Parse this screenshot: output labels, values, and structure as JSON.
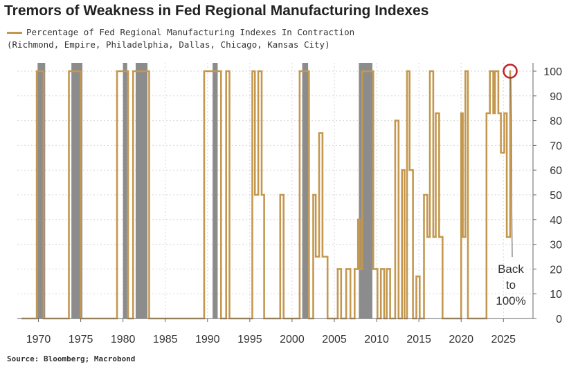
{
  "title": "Tremors of Weakness in Fed Regional Manufacturing Indexes",
  "legend": {
    "line1": "Percentage of Fed Regional Manufacturing Indexes In Contraction",
    "line2": "(Richmond, Empire, Philadelphia, Dallas, Chicago, Kansas City)"
  },
  "source": "Source: Bloomberg; Macrobond",
  "annotation": [
    "Back",
    "to",
    "100%"
  ],
  "colors": {
    "line": "#c4974f",
    "recession": "#8c8c8c",
    "grid": "#d6d6d6",
    "circle": "#c0202a"
  },
  "chart_data": {
    "type": "line",
    "xlim": [
      1967.5,
      2028.5
    ],
    "ylim": [
      0,
      100
    ],
    "x_ticks": [
      1970,
      1975,
      1980,
      1985,
      1990,
      1995,
      2000,
      2005,
      2010,
      2015,
      2020,
      2025
    ],
    "y_ticks": [
      0,
      10,
      20,
      30,
      40,
      50,
      60,
      70,
      80,
      90,
      100
    ],
    "grid": true,
    "recessions": [
      [
        1969.9,
        1970.8
      ],
      [
        1973.9,
        1975.2
      ],
      [
        1980.0,
        1980.5
      ],
      [
        1981.5,
        1982.9
      ],
      [
        1990.6,
        1991.2
      ],
      [
        2001.2,
        2001.9
      ],
      [
        2007.9,
        2009.5
      ]
    ],
    "series": [
      {
        "name": "Percentage of Fed Regional Manufacturing Indexes In Contraction",
        "step": true,
        "points": [
          [
            1968,
            0
          ],
          [
            1969.8,
            100
          ],
          [
            1970.6,
            0
          ],
          [
            1973.6,
            100
          ],
          [
            1974.9,
            100
          ],
          [
            1975.0,
            0
          ],
          [
            1979.3,
            100
          ],
          [
            1980.6,
            0
          ],
          [
            1981.2,
            100
          ],
          [
            1982.9,
            100
          ],
          [
            1983.1,
            0
          ],
          [
            1989.6,
            100
          ],
          [
            1991.6,
            0
          ],
          [
            1992.2,
            100
          ],
          [
            1992.6,
            0
          ],
          [
            1995.3,
            100
          ],
          [
            1995.6,
            50
          ],
          [
            1996.0,
            100
          ],
          [
            1996.4,
            50
          ],
          [
            1996.7,
            0
          ],
          [
            1998.6,
            50
          ],
          [
            1999.0,
            0
          ],
          [
            2000.9,
            100
          ],
          [
            2002.0,
            0
          ],
          [
            2002.5,
            50
          ],
          [
            2002.8,
            25
          ],
          [
            2003.2,
            75
          ],
          [
            2003.6,
            25
          ],
          [
            2004.2,
            0
          ],
          [
            2005.4,
            20
          ],
          [
            2005.8,
            0
          ],
          [
            2006.4,
            20
          ],
          [
            2006.9,
            0
          ],
          [
            2007.4,
            20
          ],
          [
            2007.8,
            40
          ],
          [
            2008.0,
            20
          ],
          [
            2008.3,
            100
          ],
          [
            2009.6,
            20
          ],
          [
            2010.1,
            0
          ],
          [
            2010.5,
            20
          ],
          [
            2010.9,
            0
          ],
          [
            2011.2,
            20
          ],
          [
            2011.6,
            0
          ],
          [
            2012.2,
            80
          ],
          [
            2012.6,
            0
          ],
          [
            2013.0,
            60
          ],
          [
            2013.3,
            0
          ],
          [
            2013.6,
            100
          ],
          [
            2013.9,
            60
          ],
          [
            2014.3,
            0
          ],
          [
            2014.7,
            17
          ],
          [
            2015.1,
            0
          ],
          [
            2015.6,
            50
          ],
          [
            2016.0,
            33
          ],
          [
            2016.3,
            100
          ],
          [
            2016.7,
            33
          ],
          [
            2017.0,
            83
          ],
          [
            2017.4,
            33
          ],
          [
            2017.8,
            0
          ],
          [
            2020.0,
            83
          ],
          [
            2020.2,
            33
          ],
          [
            2020.5,
            100
          ],
          [
            2020.8,
            0
          ],
          [
            2023.0,
            83
          ],
          [
            2023.4,
            100
          ],
          [
            2023.8,
            83
          ],
          [
            2024.0,
            100
          ],
          [
            2024.4,
            83
          ],
          [
            2024.7,
            67
          ],
          [
            2025.1,
            83
          ],
          [
            2025.4,
            33
          ],
          [
            2025.8,
            100
          ]
        ]
      }
    ]
  }
}
